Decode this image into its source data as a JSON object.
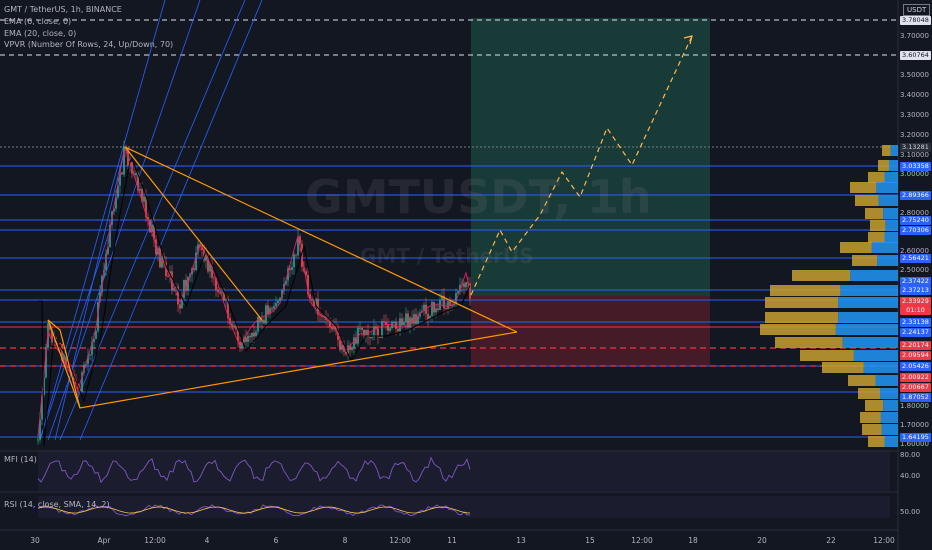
{
  "header": {
    "symbol": "GMT / TetherUS, 1h, BINANCE",
    "indicator1": "EMA (6, close, 0)",
    "indicator2": "EMA (20, close, 0)",
    "indicator3": "VPVR (Number Of Rows, 24, Up/Down, 70)",
    "currency": "USDT"
  },
  "watermark": {
    "ticker": "GMTUSDT, 1h",
    "name": "GMT / TetherUS"
  },
  "price_axis": {
    "ticks": [
      "3.70000",
      "3.50000",
      "3.40000",
      "3.30000",
      "3.20000",
      "3.10000",
      "3.00000",
      "2.80000",
      "2.60000",
      "2.50000",
      "1.80000",
      "1.70000",
      "1.60000"
    ],
    "badges": [
      {
        "text": "3.78048",
        "bg": "#e0e3eb",
        "fg": "#131722"
      },
      {
        "text": "3.60764",
        "bg": "#e0e3eb",
        "fg": "#131722"
      },
      {
        "text": "3.13281",
        "bg": "#2a2e39",
        "fg": "#d1d4dc"
      },
      {
        "text": "3.03358",
        "bg": "#2962ff",
        "fg": "#ffffff"
      },
      {
        "text": "2.89366",
        "bg": "#2962ff",
        "fg": "#ffffff"
      },
      {
        "text": "2.75240",
        "bg": "#2962ff",
        "fg": "#ffffff"
      },
      {
        "text": "2.70306",
        "bg": "#2962ff",
        "fg": "#ffffff"
      },
      {
        "text": "2.56421",
        "bg": "#2962ff",
        "fg": "#ffffff"
      },
      {
        "text": "2.37422",
        "bg": "#2962ff",
        "fg": "#ffffff"
      },
      {
        "text": "2.37213",
        "bg": "#2962ff",
        "fg": "#ffffff"
      },
      {
        "text": "2.33929",
        "bg": "#f23645",
        "fg": "#ffffff"
      },
      {
        "text": "01:10",
        "bg": "#f23645",
        "fg": "#ffffff"
      },
      {
        "text": "2.33138",
        "bg": "#2962ff",
        "fg": "#ffffff"
      },
      {
        "text": "2.24137",
        "bg": "#2962ff",
        "fg": "#ffffff"
      },
      {
        "text": "2.20174",
        "bg": "#f23645",
        "fg": "#ffffff"
      },
      {
        "text": "2.09594",
        "bg": "#f23645",
        "fg": "#ffffff"
      },
      {
        "text": "2.05426",
        "bg": "#2962ff",
        "fg": "#ffffff"
      },
      {
        "text": "2.00922",
        "bg": "#f23645",
        "fg": "#ffffff"
      },
      {
        "text": "2.00667",
        "bg": "#f23645",
        "fg": "#ffffff"
      },
      {
        "text": "1.87052",
        "bg": "#2962ff",
        "fg": "#ffffff"
      },
      {
        "text": "1.64195",
        "bg": "#2962ff",
        "fg": "#ffffff"
      }
    ]
  },
  "mfi": {
    "label": "MFI (14)",
    "ticks": [
      "80.00",
      "40.00"
    ]
  },
  "rsi": {
    "label": "RSI (14, close, SMA, 14, 2)",
    "ticks": [
      "50.00"
    ]
  },
  "time_axis": [
    "30",
    "Apr",
    "12:00",
    "4",
    "6",
    "8",
    "12:00",
    "11",
    "13",
    "15",
    "12:00",
    "18",
    "20",
    "22",
    "12:00"
  ],
  "colors": {
    "up": "#26a69a",
    "down": "#ef5350",
    "ema_fast": "#e91e63",
    "ema_slow": "#000000",
    "trendline": "#ff9800",
    "level": "#2962ff",
    "stop": "#f23645",
    "target_zone": "#1e5a4a",
    "stop_zone": "#5a1e28"
  }
}
